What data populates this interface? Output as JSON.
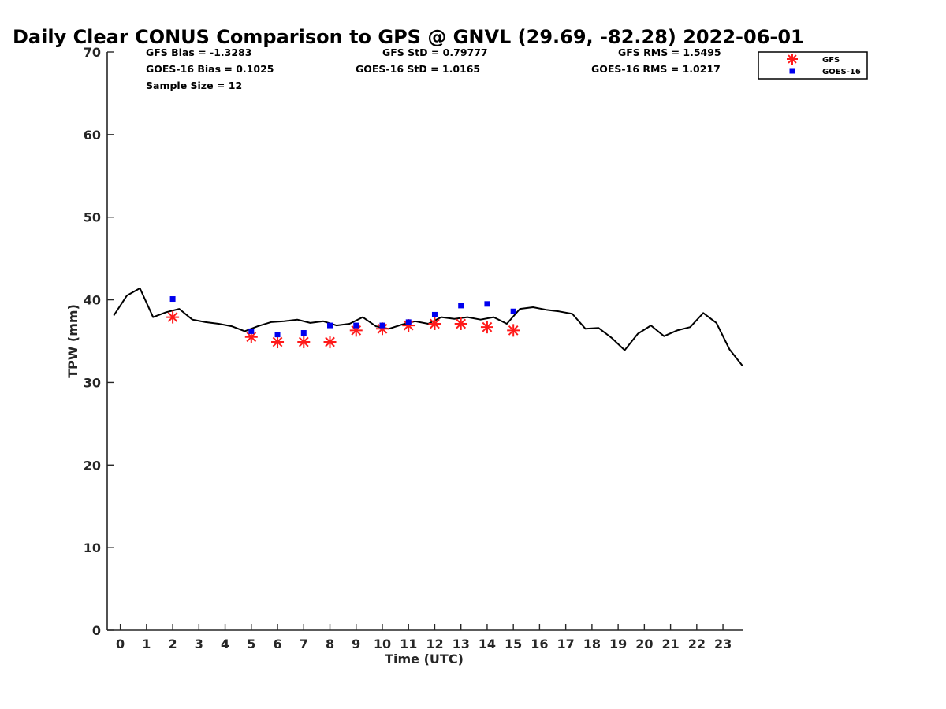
{
  "colors": {
    "gfs": "#ff1a1a",
    "goes": "#0000ee",
    "gps": "#000000",
    "axis": "#262626"
  },
  "chart_data": {
    "type": "line",
    "title": "Daily Clear CONUS Comparison to GPS @ GNVL (29.69, -82.28) 2022-06-01",
    "xlabel": "Time (UTC)",
    "ylabel": "TPW (mm)",
    "xlim": [
      -0.5,
      23.75
    ],
    "ylim": [
      0,
      70
    ],
    "xticks": [
      0,
      1,
      2,
      3,
      4,
      5,
      6,
      7,
      8,
      9,
      10,
      11,
      12,
      13,
      14,
      15,
      16,
      17,
      18,
      19,
      20,
      21,
      22,
      23
    ],
    "yticks": [
      0,
      10,
      20,
      30,
      40,
      50,
      60,
      70
    ],
    "grid": false,
    "legend_position": "top-right",
    "stats": {
      "gfs_bias": "GFS Bias = -1.3283",
      "goes_bias": "GOES-16 Bias = 0.1025",
      "sample_size": "Sample Size = 12",
      "gfs_std": "GFS StD = 0.79777",
      "goes_std": "GOES-16 StD = 1.0165",
      "gfs_rms": "GFS RMS = 1.5495",
      "goes_rms": "GOES-16 RMS = 1.0217"
    },
    "series": [
      {
        "key": "gps",
        "marker": "line",
        "x": [
          -0.25,
          0.25,
          0.75,
          1.25,
          1.75,
          2.25,
          2.75,
          3.25,
          3.75,
          4.25,
          4.75,
          5.25,
          5.75,
          6.25,
          6.75,
          7.25,
          7.75,
          8.25,
          8.75,
          9.25,
          9.75,
          10.25,
          10.75,
          11.25,
          11.75,
          12.25,
          12.75,
          13.25,
          13.75,
          14.25,
          14.75,
          15.25,
          15.75,
          16.25,
          16.75,
          17.25,
          17.75,
          18.25,
          18.75,
          19.25,
          19.75,
          20.25,
          20.75,
          21.25,
          21.75,
          22.25,
          22.75,
          23.25,
          23.75
        ],
        "values": [
          38.1,
          40.5,
          41.4,
          37.9,
          38.5,
          38.9,
          37.6,
          37.3,
          37.1,
          36.8,
          36.2,
          36.8,
          37.3,
          37.4,
          37.6,
          37.2,
          37.4,
          36.9,
          37.1,
          37.9,
          36.8,
          36.5,
          37.0,
          37.4,
          37.1,
          37.9,
          37.7,
          37.9,
          37.6,
          37.9,
          37.1,
          38.9,
          39.1,
          38.8,
          38.6,
          38.3,
          36.5,
          36.6,
          35.4,
          33.9,
          35.9,
          36.9,
          35.6,
          36.3,
          36.7,
          38.4,
          37.2,
          34.0,
          32.0
        ]
      },
      {
        "key": "gfs",
        "name": "GFS",
        "marker": "asterisk",
        "x": [
          2,
          5,
          6,
          7,
          8,
          9,
          10,
          11,
          12,
          13,
          14,
          15
        ],
        "values": [
          37.9,
          35.5,
          34.9,
          34.9,
          34.9,
          36.3,
          36.5,
          36.9,
          37.1,
          37.1,
          36.7,
          36.3
        ]
      },
      {
        "key": "goes",
        "name": "GOES-16",
        "marker": "square",
        "x": [
          2,
          5,
          6,
          7,
          8,
          9,
          10,
          11,
          12,
          13,
          14,
          15
        ],
        "values": [
          40.1,
          36.2,
          35.8,
          36.0,
          36.9,
          36.9,
          36.9,
          37.3,
          38.2,
          39.3,
          39.5,
          38.6
        ]
      }
    ]
  }
}
